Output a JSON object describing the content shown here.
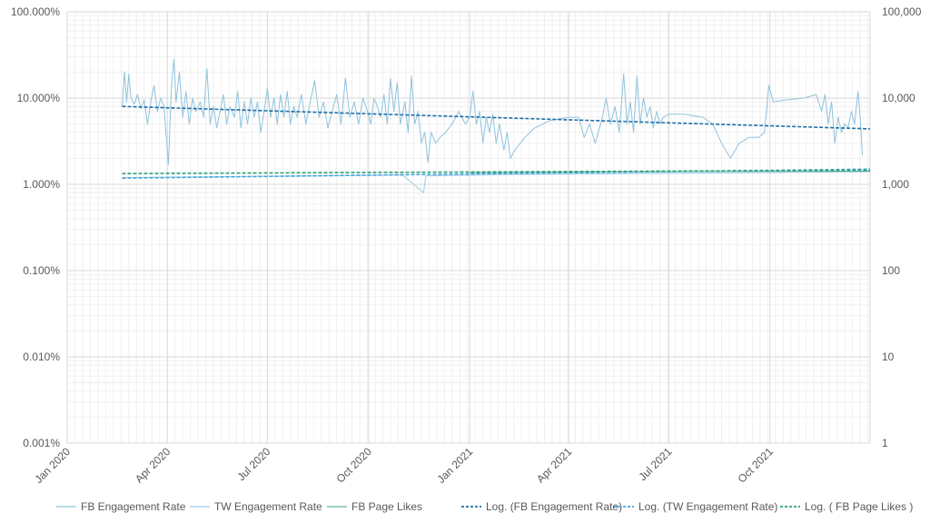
{
  "chart_data": {
    "type": "line",
    "x_axis": {
      "type": "date",
      "range": [
        "2020-01-01",
        "2021-12-31"
      ],
      "tick_labels": [
        "Jan 2020",
        "Apr 2020",
        "Jul 2020",
        "Oct 2020",
        "Jan 2021",
        "Apr 2021",
        "Jul 2021",
        "Oct 2021"
      ],
      "tick_dates": [
        "2020-01-01",
        "2020-04-01",
        "2020-07-01",
        "2020-10-01",
        "2021-01-01",
        "2021-04-01",
        "2021-07-01",
        "2021-10-01"
      ],
      "grid": true
    },
    "y_left": {
      "scale": "log",
      "range": [
        1e-05,
        1
      ],
      "tick_labels": [
        "100.000%",
        "10.000%",
        "1.000%",
        "0.100%",
        "0.010%",
        "0.001%"
      ],
      "tick_values": [
        1,
        0.1,
        0.01,
        0.001,
        0.0001,
        1e-05
      ],
      "grid": true
    },
    "y_right": {
      "scale": "log",
      "range": [
        1,
        100000
      ],
      "tick_labels": [
        "100,000",
        "10,000",
        "1,000",
        "100",
        "10",
        "1"
      ],
      "tick_values": [
        100000,
        10000,
        1000,
        100,
        10,
        1
      ]
    },
    "legend_position": "bottom",
    "series": [
      {
        "name": "FB Engagement Rate",
        "axis": "left",
        "color": "#8fc3dd",
        "style": "solid",
        "points": [
          [
            "2020-02-20",
            0.08
          ],
          [
            "2020-02-22",
            0.2
          ],
          [
            "2020-02-24",
            0.09
          ],
          [
            "2020-02-26",
            0.19
          ],
          [
            "2020-02-28",
            0.1
          ],
          [
            "2020-03-02",
            0.085
          ],
          [
            "2020-03-05",
            0.11
          ],
          [
            "2020-03-08",
            0.075
          ],
          [
            "2020-03-11",
            0.095
          ],
          [
            "2020-03-14",
            0.05
          ],
          [
            "2020-03-17",
            0.09
          ],
          [
            "2020-03-20",
            0.14
          ],
          [
            "2020-03-23",
            0.07
          ],
          [
            "2020-03-26",
            0.1
          ],
          [
            "2020-03-29",
            0.08
          ],
          [
            "2020-04-02",
            0.017
          ],
          [
            "2020-04-05",
            0.15
          ],
          [
            "2020-04-07",
            0.28
          ],
          [
            "2020-04-09",
            0.09
          ],
          [
            "2020-04-12",
            0.2
          ],
          [
            "2020-04-15",
            0.06
          ],
          [
            "2020-04-18",
            0.12
          ],
          [
            "2020-04-21",
            0.05
          ],
          [
            "2020-04-24",
            0.1
          ],
          [
            "2020-04-27",
            0.07
          ],
          [
            "2020-05-01",
            0.09
          ],
          [
            "2020-05-04",
            0.06
          ],
          [
            "2020-05-07",
            0.22
          ],
          [
            "2020-05-10",
            0.05
          ],
          [
            "2020-05-13",
            0.08
          ],
          [
            "2020-05-16",
            0.045
          ],
          [
            "2020-05-19",
            0.07
          ],
          [
            "2020-05-22",
            0.11
          ],
          [
            "2020-05-25",
            0.05
          ],
          [
            "2020-05-28",
            0.08
          ],
          [
            "2020-06-01",
            0.06
          ],
          [
            "2020-06-04",
            0.12
          ],
          [
            "2020-06-07",
            0.045
          ],
          [
            "2020-06-10",
            0.09
          ],
          [
            "2020-06-13",
            0.05
          ],
          [
            "2020-06-16",
            0.1
          ],
          [
            "2020-06-19",
            0.06
          ],
          [
            "2020-06-22",
            0.09
          ],
          [
            "2020-06-25",
            0.04
          ],
          [
            "2020-06-28",
            0.07
          ],
          [
            "2020-07-01",
            0.13
          ],
          [
            "2020-07-04",
            0.06
          ],
          [
            "2020-07-07",
            0.1
          ],
          [
            "2020-07-10",
            0.05
          ],
          [
            "2020-07-13",
            0.11
          ],
          [
            "2020-07-16",
            0.06
          ],
          [
            "2020-07-19",
            0.12
          ],
          [
            "2020-07-22",
            0.05
          ],
          [
            "2020-07-25",
            0.08
          ],
          [
            "2020-07-28",
            0.06
          ],
          [
            "2020-08-01",
            0.11
          ],
          [
            "2020-08-05",
            0.05
          ],
          [
            "2020-08-09",
            0.09
          ],
          [
            "2020-08-13",
            0.16
          ],
          [
            "2020-08-17",
            0.06
          ],
          [
            "2020-08-21",
            0.09
          ],
          [
            "2020-08-25",
            0.045
          ],
          [
            "2020-08-29",
            0.07
          ],
          [
            "2020-09-02",
            0.11
          ],
          [
            "2020-09-06",
            0.05
          ],
          [
            "2020-09-10",
            0.17
          ],
          [
            "2020-09-14",
            0.06
          ],
          [
            "2020-09-18",
            0.09
          ],
          [
            "2020-09-22",
            0.05
          ],
          [
            "2020-09-26",
            0.1
          ],
          [
            "2020-09-30",
            0.07
          ],
          [
            "2020-10-03",
            0.05
          ],
          [
            "2020-10-06",
            0.1
          ],
          [
            "2020-10-09",
            0.08
          ],
          [
            "2020-10-12",
            0.06
          ],
          [
            "2020-10-15",
            0.11
          ],
          [
            "2020-10-18",
            0.05
          ],
          [
            "2020-10-21",
            0.17
          ],
          [
            "2020-10-24",
            0.07
          ],
          [
            "2020-10-27",
            0.15
          ],
          [
            "2020-10-30",
            0.05
          ],
          [
            "2020-11-03",
            0.09
          ],
          [
            "2020-11-06",
            0.04
          ],
          [
            "2020-11-09",
            0.18
          ],
          [
            "2020-11-12",
            0.05
          ],
          [
            "2020-11-15",
            0.07
          ],
          [
            "2020-11-18",
            0.03
          ],
          [
            "2020-11-21",
            0.04
          ],
          [
            "2020-11-24",
            0.018
          ],
          [
            "2020-11-27",
            0.04
          ],
          [
            "2020-12-01",
            0.03
          ],
          [
            "2020-12-05",
            0.035
          ],
          [
            "2020-12-10",
            0.04
          ],
          [
            "2020-12-16",
            0.05
          ],
          [
            "2020-12-22",
            0.07
          ],
          [
            "2020-12-28",
            0.05
          ],
          [
            "2021-01-01",
            0.06
          ],
          [
            "2021-01-04",
            0.12
          ],
          [
            "2021-01-07",
            0.05
          ],
          [
            "2021-01-10",
            0.07
          ],
          [
            "2021-01-13",
            0.03
          ],
          [
            "2021-01-16",
            0.06
          ],
          [
            "2021-01-19",
            0.04
          ],
          [
            "2021-01-22",
            0.065
          ],
          [
            "2021-01-25",
            0.03
          ],
          [
            "2021-01-28",
            0.05
          ],
          [
            "2021-02-01",
            0.025
          ],
          [
            "2021-02-04",
            0.04
          ],
          [
            "2021-02-07",
            0.02
          ],
          [
            "2021-02-11",
            0.025
          ],
          [
            "2021-02-20",
            0.035
          ],
          [
            "2021-03-01",
            0.045
          ],
          [
            "2021-03-15",
            0.055
          ],
          [
            "2021-04-01",
            0.06
          ],
          [
            "2021-04-10",
            0.06
          ],
          [
            "2021-04-15",
            0.035
          ],
          [
            "2021-04-20",
            0.05
          ],
          [
            "2021-04-25",
            0.03
          ],
          [
            "2021-05-01",
            0.055
          ],
          [
            "2021-05-05",
            0.1
          ],
          [
            "2021-05-09",
            0.05
          ],
          [
            "2021-05-13",
            0.08
          ],
          [
            "2021-05-17",
            0.04
          ],
          [
            "2021-05-21",
            0.19
          ],
          [
            "2021-05-24",
            0.05
          ],
          [
            "2021-05-27",
            0.09
          ],
          [
            "2021-05-30",
            0.04
          ],
          [
            "2021-06-02",
            0.18
          ],
          [
            "2021-06-05",
            0.05
          ],
          [
            "2021-06-08",
            0.1
          ],
          [
            "2021-06-11",
            0.06
          ],
          [
            "2021-06-14",
            0.08
          ],
          [
            "2021-06-17",
            0.045
          ],
          [
            "2021-06-20",
            0.07
          ],
          [
            "2021-06-23",
            0.05
          ],
          [
            "2021-06-26",
            0.06
          ],
          [
            "2021-07-01",
            0.065
          ],
          [
            "2021-07-15",
            0.065
          ],
          [
            "2021-08-01",
            0.06
          ],
          [
            "2021-08-10",
            0.05
          ],
          [
            "2021-08-18",
            0.03
          ],
          [
            "2021-08-26",
            0.02
          ],
          [
            "2021-09-03",
            0.03
          ],
          [
            "2021-09-12",
            0.035
          ],
          [
            "2021-09-21",
            0.035
          ],
          [
            "2021-09-26",
            0.04
          ],
          [
            "2021-09-30",
            0.14
          ],
          [
            "2021-10-04",
            0.09
          ],
          [
            "2021-10-15",
            0.095
          ],
          [
            "2021-11-01",
            0.1
          ],
          [
            "2021-11-12",
            0.11
          ],
          [
            "2021-11-17",
            0.07
          ],
          [
            "2021-11-20",
            0.11
          ],
          [
            "2021-11-23",
            0.05
          ],
          [
            "2021-11-26",
            0.09
          ],
          [
            "2021-11-29",
            0.03
          ],
          [
            "2021-12-02",
            0.06
          ],
          [
            "2021-12-05",
            0.04
          ],
          [
            "2021-12-08",
            0.05
          ],
          [
            "2021-12-11",
            0.045
          ],
          [
            "2021-12-14",
            0.07
          ],
          [
            "2021-12-17",
            0.05
          ],
          [
            "2021-12-20",
            0.12
          ],
          [
            "2021-12-22",
            0.06
          ],
          [
            "2021-12-24",
            0.022
          ]
        ]
      },
      {
        "name": "TW Engagement Rate",
        "axis": "left",
        "color": "#9dc9e3",
        "style": "solid",
        "points": [
          [
            "2020-02-20",
            0.012
          ],
          [
            "2020-05-01",
            0.0122
          ],
          [
            "2020-08-01",
            0.0125
          ],
          [
            "2020-11-01",
            0.0128
          ],
          [
            "2020-11-20",
            0.008
          ],
          [
            "2020-11-22",
            0.0125
          ],
          [
            "2021-02-01",
            0.013
          ],
          [
            "2021-05-01",
            0.0132
          ],
          [
            "2021-08-01",
            0.0135
          ],
          [
            "2021-11-01",
            0.0138
          ],
          [
            "2021-12-31",
            0.014
          ]
        ]
      },
      {
        "name": "FB Page Likes",
        "axis": "right",
        "color": "#5fb0a6",
        "style": "solid",
        "points": [
          [
            "2021-01-01",
            1360
          ],
          [
            "2021-04-01",
            1380
          ],
          [
            "2021-07-01",
            1400
          ],
          [
            "2021-10-01",
            1410
          ],
          [
            "2021-12-31",
            1420
          ]
        ]
      },
      {
        "name": "Log. (FB Engagement Rate)",
        "axis": "left",
        "color": "#1f6fa8",
        "style": "dashed",
        "points": [
          [
            "2020-02-20",
            0.08
          ],
          [
            "2021-12-31",
            0.044
          ]
        ]
      },
      {
        "name": "Log. (TW Engagement Rate)",
        "axis": "left",
        "color": "#3ea6dc",
        "style": "dashed",
        "points": [
          [
            "2020-02-20",
            0.0118
          ],
          [
            "2021-12-31",
            0.015
          ]
        ]
      },
      {
        "name": "Log. ( FB Page Likes )",
        "axis": "right",
        "color": "#2aa371",
        "style": "dashed",
        "points": [
          [
            "2020-02-20",
            1330
          ],
          [
            "2021-12-31",
            1460
          ]
        ]
      }
    ]
  }
}
